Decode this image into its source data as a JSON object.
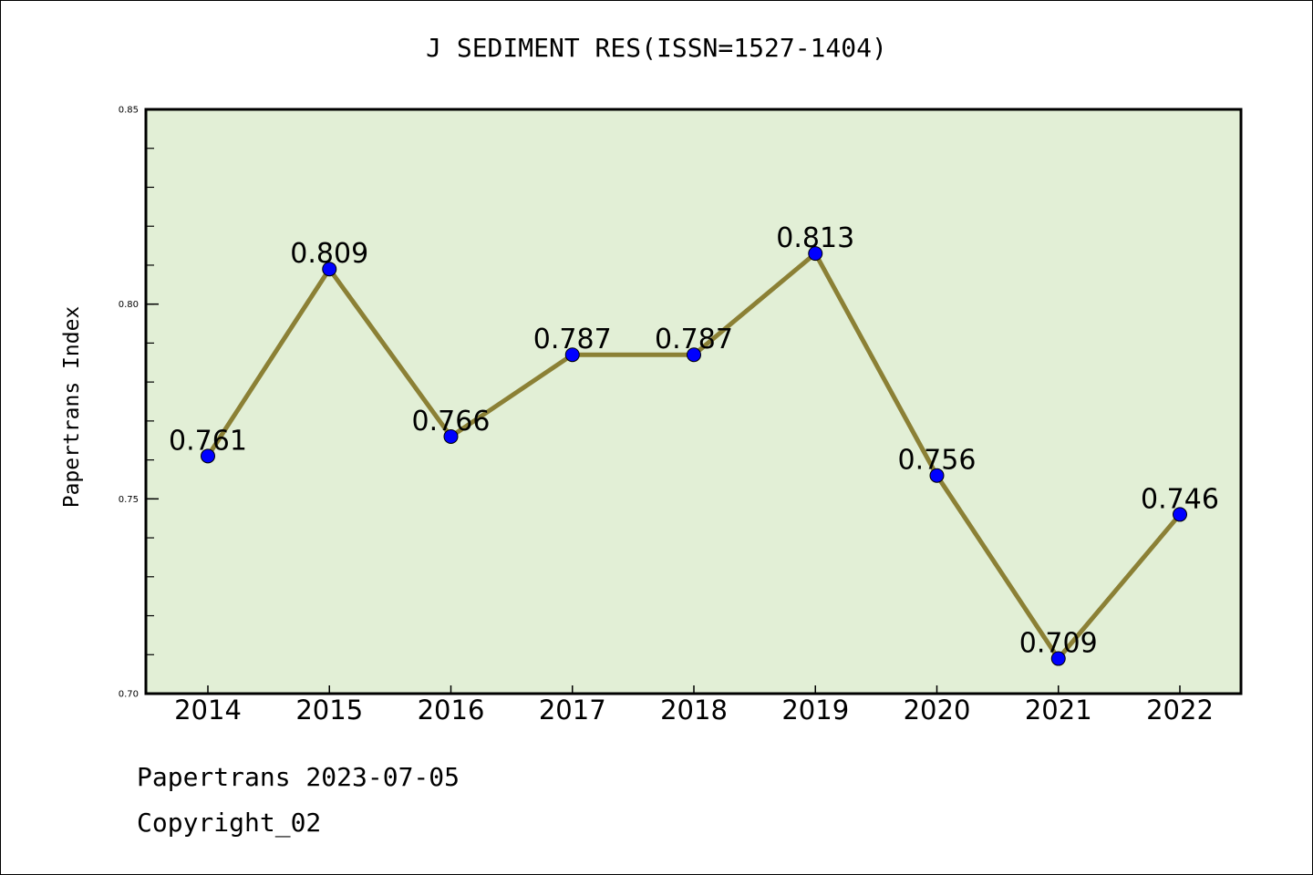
{
  "chart_data": {
    "type": "line",
    "title": "J SEDIMENT RES(ISSN=1527-1404)",
    "xlabel": "",
    "ylabel": "Papertrans Index",
    "categories": [
      "2014",
      "2015",
      "2016",
      "2017",
      "2018",
      "2019",
      "2020",
      "2021",
      "2022"
    ],
    "series": [
      {
        "values": [
          0.761,
          0.809,
          0.766,
          0.787,
          0.787,
          0.813,
          0.756,
          0.709,
          0.746
        ]
      }
    ],
    "data_labels": [
      "0.761",
      "0.809",
      "0.766",
      "0.787",
      "0.787",
      "0.813",
      "0.756",
      "0.709",
      "0.746"
    ],
    "ylim": [
      0.7,
      0.85
    ],
    "yticks": [
      "0.70",
      "0.75",
      "0.80",
      "0.85"
    ],
    "grid": false,
    "colors": {
      "plot_background": "#e2efd6",
      "line": "#8b8035",
      "marker": "#0000ff"
    }
  },
  "footer": {
    "line1": "Papertrans 2023-07-05",
    "line2": "Copyright_02"
  }
}
